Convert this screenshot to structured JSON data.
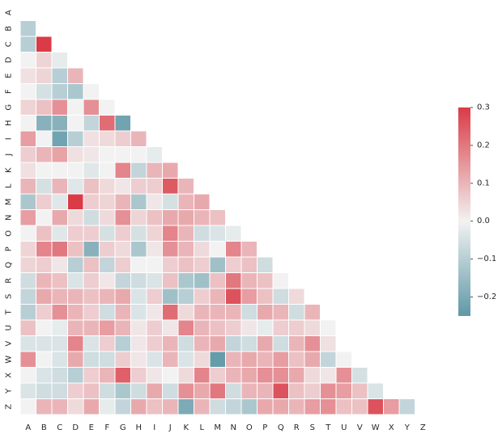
{
  "chart_data": {
    "type": "heatmap",
    "title": "",
    "xlabel": "",
    "ylabel": "",
    "x_labels": [
      "A",
      "B",
      "C",
      "D",
      "E",
      "F",
      "G",
      "H",
      "I",
      "J",
      "K",
      "L",
      "M",
      "N",
      "O",
      "P",
      "Q",
      "R",
      "S",
      "T",
      "U",
      "V",
      "W",
      "X",
      "Y",
      "Z"
    ],
    "y_labels": [
      "A",
      "B",
      "C",
      "D",
      "E",
      "F",
      "G",
      "H",
      "I",
      "J",
      "K",
      "L",
      "M",
      "N",
      "O",
      "P",
      "Q",
      "R",
      "S",
      "T",
      "U",
      "V",
      "W",
      "X",
      "Y",
      "Z"
    ],
    "mask": "upper-triangle-including-diagonal",
    "grid": "white cell borders",
    "colormap": {
      "low": "#5f98a7",
      "mid": "#f2f2f2",
      "high": "#da3b46"
    },
    "vmin": -0.25,
    "vmax": 0.3,
    "colorbar": {
      "position": "right",
      "ticks": [
        0.3,
        0.2,
        0.1,
        0.0,
        -0.1,
        -0.2
      ],
      "tick_labels": [
        "0.3",
        "0.2",
        "0.1",
        "0.0",
        "−0.1",
        "−0.2"
      ]
    },
    "rows": [
      [],
      [
        -0.1
      ],
      [
        -0.1,
        0.3
      ],
      [
        0.0,
        0.05,
        -0.02
      ],
      [
        0.03,
        0.05,
        -0.1,
        0.1
      ],
      [
        0.0,
        -0.05,
        -0.1,
        -0.12,
        0.0
      ],
      [
        0.05,
        0.08,
        0.16,
        0.0,
        0.16,
        0.0
      ],
      [
        0.0,
        -0.18,
        -0.18,
        0.0,
        -0.08,
        0.22,
        -0.22
      ],
      [
        0.14,
        0.0,
        -0.22,
        -0.1,
        0.03,
        0.04,
        0.06,
        0.1
      ],
      [
        0.06,
        0.1,
        0.13,
        0.03,
        0.02,
        0.0,
        0.0,
        0.0,
        -0.02
      ],
      [
        0.03,
        0.0,
        0.0,
        0.0,
        -0.03,
        0.0,
        0.18,
        -0.08,
        0.1,
        0.12
      ],
      [
        0.1,
        -0.05,
        0.1,
        -0.03,
        0.08,
        0.04,
        0.02,
        0.06,
        0.06,
        0.25,
        0.1
      ],
      [
        -0.12,
        0.06,
        -0.03,
        0.3,
        0.06,
        0.05,
        0.1,
        -0.12,
        0.02,
        -0.05,
        0.1,
        0.12
      ],
      [
        0.14,
        0.0,
        0.12,
        0.04,
        -0.06,
        0.04,
        0.16,
        0.05,
        0.08,
        0.12,
        0.12,
        0.1,
        0.08
      ],
      [
        0.0,
        0.08,
        -0.03,
        0.06,
        0.06,
        -0.05,
        0.06,
        -0.05,
        0.05,
        0.18,
        0.1,
        -0.06,
        -0.04,
        -0.02
      ],
      [
        0.05,
        0.18,
        0.2,
        0.08,
        -0.18,
        0.06,
        0.04,
        -0.12,
        0.02,
        0.16,
        0.1,
        0.04,
        0.0,
        0.18,
        0.1
      ],
      [
        0.05,
        0.06,
        0.02,
        -0.1,
        0.08,
        -0.08,
        0.06,
        0.0,
        0.0,
        0.06,
        0.08,
        0.06,
        -0.14,
        0.06,
        0.08,
        -0.06
      ],
      [
        -0.06,
        0.1,
        0.08,
        -0.04,
        0.06,
        0.02,
        -0.08,
        -0.06,
        -0.04,
        0.08,
        -0.12,
        -0.14,
        0.08,
        0.2,
        0.1,
        0.08,
        0.0
      ],
      [
        -0.08,
        0.12,
        0.1,
        0.1,
        0.08,
        0.1,
        0.12,
        -0.04,
        0.06,
        -0.14,
        -0.1,
        0.06,
        0.1,
        0.26,
        0.14,
        0.08,
        -0.06,
        0.04
      ],
      [
        -0.1,
        0.06,
        0.16,
        0.1,
        0.06,
        -0.06,
        0.1,
        -0.04,
        0.02,
        0.22,
        0.04,
        0.1,
        0.1,
        0.1,
        -0.06,
        0.12,
        0.1,
        -0.06,
        0.1
      ],
      [
        0.08,
        0.0,
        -0.02,
        0.1,
        0.1,
        0.14,
        0.1,
        0.02,
        0.06,
        0.02,
        0.18,
        0.1,
        0.08,
        0.06,
        0.02,
        -0.02,
        0.06,
        0.06,
        0.04,
        0.0
      ],
      [
        -0.04,
        -0.04,
        -0.04,
        0.18,
        -0.04,
        0.06,
        -0.1,
        0.02,
        0.06,
        0.1,
        -0.06,
        0.1,
        0.12,
        -0.08,
        -0.06,
        0.12,
        -0.06,
        0.1,
        0.16,
        0.03
      ],
      [
        0.16,
        0.0,
        -0.04,
        0.12,
        -0.06,
        -0.06,
        0.06,
        0.02,
        -0.04,
        0.1,
        -0.04,
        0.04,
        -0.24,
        0.1,
        0.12,
        0.1,
        0.14,
        0.08,
        0.12,
        -0.08,
        0.0
      ],
      [
        0.0,
        -0.04,
        -0.06,
        -0.1,
        0.06,
        0.1,
        0.24,
        0.06,
        0.02,
        0.0,
        0.04,
        0.18,
        0.06,
        0.1,
        0.12,
        0.16,
        0.16,
        0.12,
        0.04,
        0.02,
        0.16,
        -0.05
      ],
      [
        -0.04,
        -0.06,
        -0.06,
        0.06,
        0.08,
        -0.06,
        -0.12,
        -0.06,
        0.12,
        -0.06,
        0.16,
        0.12,
        0.2,
        -0.06,
        0.1,
        0.1,
        0.26,
        0.08,
        0.06,
        0.16,
        0.14,
        0.08,
        -0.04
      ],
      [
        0.0,
        0.1,
        0.1,
        0.04,
        0.12,
        -0.02,
        -0.08,
        0.12,
        0.08,
        0.1,
        -0.2,
        0.1,
        -0.06,
        -0.08,
        -0.12,
        0.12,
        0.12,
        0.1,
        0.14,
        0.16,
        0.08,
        0.08,
        0.26,
        0.14,
        -0.08
      ]
    ]
  }
}
